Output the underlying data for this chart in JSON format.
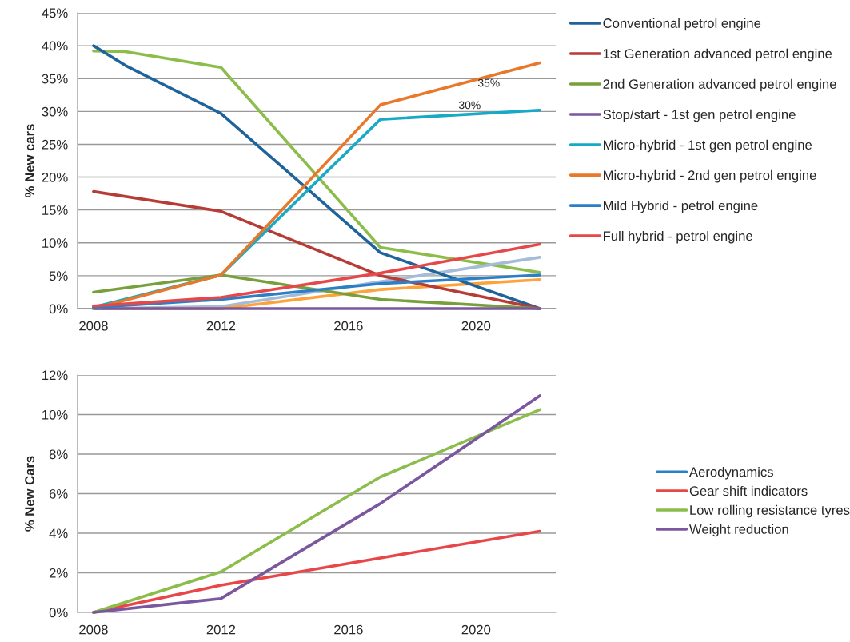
{
  "chart_data": [
    {
      "type": "line",
      "ylabel": "% New cars",
      "xlim": [
        2007.5,
        2022.5
      ],
      "ylim": [
        0,
        45
      ],
      "grid": "y",
      "legend": "right",
      "xticks": [
        2008,
        2012,
        2016,
        2020
      ],
      "yticks": [
        {
          "value": 0,
          "label": "0%"
        },
        {
          "value": 5,
          "label": "5%"
        },
        {
          "value": 10,
          "label": "10%"
        },
        {
          "value": 15,
          "label": "15%"
        },
        {
          "value": 20,
          "label": "20%"
        },
        {
          "value": 25,
          "label": "25%"
        },
        {
          "value": 30,
          "label": "30%"
        },
        {
          "value": 35,
          "label": "35%"
        },
        {
          "value": 40,
          "label": "40%"
        },
        {
          "value": 45,
          "label": "45%"
        }
      ],
      "series": [
        {
          "color": "#8cbd4a",
          "x": [
            2008,
            2009,
            2012,
            2017,
            2022
          ],
          "values": [
            39.2,
            39.1,
            36.7,
            9.3,
            5.5
          ]
        },
        {
          "color": "#a5bcd9",
          "x": [
            2008,
            2012,
            2017,
            2022
          ],
          "values": [
            0,
            0.3,
            4.1,
            7.8
          ]
        },
        {
          "color": "#fca33c",
          "x": [
            2008,
            2012,
            2017,
            2022
          ],
          "values": [
            0,
            0,
            2.9,
            4.4
          ]
        },
        {
          "name": "Conventional petrol engine",
          "color": "#1f639b",
          "x": [
            2008,
            2009,
            2012,
            2017,
            2022
          ],
          "values": [
            40,
            37,
            29.7,
            8.5,
            0
          ]
        },
        {
          "name": "1st Generation advanced petrol engine",
          "color": "#b83c36",
          "x": [
            2008,
            2012,
            2017,
            2022
          ],
          "values": [
            17.8,
            14.8,
            5.0,
            0
          ]
        },
        {
          "name": "2nd Generation advanced petrol engine",
          "color": "#77a03a",
          "x": [
            2008,
            2012,
            2017,
            2022
          ],
          "values": [
            2.5,
            5.1,
            1.4,
            0
          ]
        },
        {
          "name": "Stop/start - 1st gen petrol engine",
          "color": "#7a579e",
          "x": [
            2008,
            2012,
            2017,
            2022
          ],
          "values": [
            0,
            0,
            0,
            0
          ]
        },
        {
          "name": "Micro-hybrid - 1st gen petrol engine",
          "color": "#18a9c6",
          "x": [
            2008,
            2012,
            2017,
            2022
          ],
          "values": [
            0.2,
            5.1,
            28.8,
            30.2
          ]
        },
        {
          "name": "Micro-hybrid - 2nd gen petrol engine",
          "color": "#e8782a",
          "x": [
            2008,
            2012,
            2017,
            2022
          ],
          "values": [
            0,
            5.1,
            31.0,
            37.4
          ]
        },
        {
          "name": "Mild Hybrid - petrol engine",
          "color": "#2a7fc7",
          "x": [
            2008,
            2012,
            2017,
            2022
          ],
          "values": [
            0.2,
            1.4,
            3.8,
            5.1
          ]
        },
        {
          "name": "Full hybrid - petrol engine",
          "color": "#e8474a",
          "x": [
            2008,
            2012,
            2017,
            2022
          ],
          "values": [
            0.4,
            1.7,
            5.4,
            9.8
          ]
        }
      ],
      "annotations": [
        "35%",
        "30%"
      ]
    },
    {
      "type": "line",
      "ylabel": "% New Cars",
      "xlim": [
        2007.5,
        2022.5
      ],
      "ylim": [
        0,
        12
      ],
      "grid": "y",
      "legend": "right",
      "xticks": [
        2008,
        2012,
        2016,
        2020
      ],
      "yticks": [
        {
          "value": 0,
          "label": "0%"
        },
        {
          "value": 2,
          "label": "2%"
        },
        {
          "value": 4,
          "label": "4%"
        },
        {
          "value": 6,
          "label": "6%"
        },
        {
          "value": 8,
          "label": "8%"
        },
        {
          "value": 10,
          "label": "10%"
        },
        {
          "value": 12,
          "label": "12%"
        }
      ],
      "series": [
        {
          "name": "Aerodynamics",
          "color": "#2a7fc7",
          "values": [
            null,
            null,
            null,
            null
          ]
        },
        {
          "name": "Gear shift indicators",
          "color": "#e8474a",
          "x": [
            2008,
            2012,
            2017,
            2022
          ],
          "values": [
            0,
            1.37,
            2.75,
            4.1
          ]
        },
        {
          "name": "Low rolling resistance tyres",
          "color": "#8cbd4a",
          "x": [
            2008,
            2012,
            2017,
            2022
          ],
          "values": [
            0,
            2.05,
            6.85,
            10.25
          ]
        },
        {
          "name": "Weight reduction",
          "color": "#7a579e",
          "x": [
            2008,
            2012,
            2017,
            2022
          ],
          "values": [
            0,
            0.7,
            5.5,
            10.95
          ]
        }
      ]
    }
  ]
}
